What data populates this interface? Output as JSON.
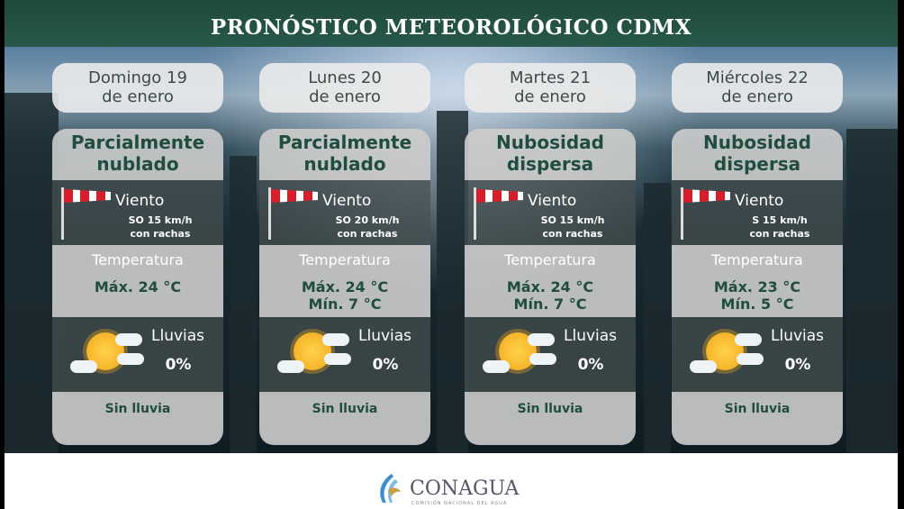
{
  "title": "PRONÓSTICO METEOROLÓGICO CDMX",
  "days": [
    {
      "date": [
        "Domingo 19",
        "de enero"
      ],
      "condition": [
        "Parcialmente",
        "nublado"
      ],
      "wind_label": "Viento",
      "wind": [
        "SO 15 km/h",
        "con rachas"
      ],
      "temp_label": "Temperatura",
      "temp": [
        "Máx. 24 °C",
        ""
      ],
      "rain_label": "Lluvias",
      "rain": "0%",
      "summary": "Sin lluvia",
      "icon": "partly-cloudy-sun"
    },
    {
      "date": [
        "Lunes 20",
        "de enero"
      ],
      "condition": [
        "Parcialmente",
        "nublado"
      ],
      "wind_label": "Viento",
      "wind": [
        "SO 20 km/h",
        "con rachas"
      ],
      "temp_label": "Temperatura",
      "temp": [
        "Máx. 24 °C",
        "Mín. 7 °C"
      ],
      "rain_label": "Lluvias",
      "rain": "0%",
      "summary": "Sin lluvia",
      "icon": "partly-cloudy-sun"
    },
    {
      "date": [
        "Martes 21",
        "de enero"
      ],
      "condition": [
        "Nubosidad",
        "dispersa"
      ],
      "wind_label": "Viento",
      "wind": [
        "SO 15 km/h",
        "con rachas"
      ],
      "temp_label": "Temperatura",
      "temp": [
        "Máx. 24 °C",
        "Mín. 7 °C"
      ],
      "rain_label": "Lluvias",
      "rain": "0%",
      "summary": "Sin lluvia",
      "icon": "partly-cloudy-sun"
    },
    {
      "date": [
        "Miércoles 22",
        "de enero"
      ],
      "condition": [
        "Nubosidad",
        "dispersa"
      ],
      "wind_label": "Viento",
      "wind": [
        "S 15 km/h",
        "con rachas"
      ],
      "temp_label": "Temperatura",
      "temp": [
        "Máx. 23 °C",
        "Mín. 5 °C"
      ],
      "rain_label": "Lluvias",
      "rain": "0%",
      "summary": "Sin lluvia",
      "icon": "partly-cloudy-sun"
    }
  ],
  "logo": {
    "name": "CONAGUA",
    "subtitle": "COMISIÓN NACIONAL DEL AGUA"
  },
  "colors": {
    "title_bg": "#27584a",
    "text_green": "#214c40",
    "windsock_red": "#d81e2a"
  }
}
